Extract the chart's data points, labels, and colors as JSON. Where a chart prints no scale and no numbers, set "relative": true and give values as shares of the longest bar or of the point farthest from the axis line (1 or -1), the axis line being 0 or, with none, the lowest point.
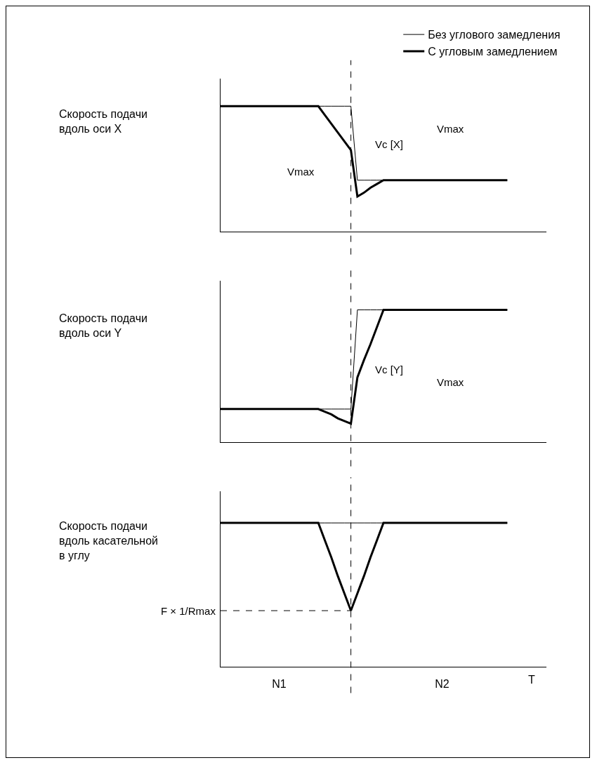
{
  "chart_data": [
    {
      "type": "line",
      "relative": true,
      "ylabel": "Скорость подачи вдоль оси X",
      "legend": "top right",
      "tick_labels": false,
      "categories": [
        null,
        null,
        null,
        null,
        null,
        null,
        null,
        null,
        null,
        null,
        null,
        null,
        null,
        null,
        null,
        null,
        null,
        null,
        null,
        null,
        null,
        null,
        null,
        null,
        null,
        null,
        null,
        null,
        null,
        null,
        null,
        null,
        null,
        null,
        null,
        null,
        null,
        null,
        null,
        null,
        null,
        null,
        null,
        null,
        null,
        null,
        null,
        null,
        null,
        null
      ],
      "series": [
        {
          "name": "Без углового замедления",
          "color": "#000000",
          "values": [
            1,
            1,
            1,
            1,
            1,
            1,
            1,
            1,
            1,
            1,
            1,
            1,
            1,
            1,
            1,
            1,
            1,
            1,
            1,
            1,
            1,
            0.41,
            0.41,
            0.41,
            0.41,
            0.41,
            0.41,
            0.41,
            0.41,
            0.41,
            0.41,
            0.41,
            0.41,
            0.41,
            0.41,
            0.41,
            0.41,
            0.41,
            0.41,
            0.41,
            0.41,
            0.41,
            0.41,
            0.41,
            0.41,
            null,
            null,
            null,
            null,
            null
          ]
        },
        {
          "name": "С угловым замедлением",
          "color": "#000000",
          "values": [
            1,
            1,
            1,
            1,
            1,
            1,
            1,
            1,
            1,
            1,
            1,
            1,
            1,
            1,
            1,
            1,
            0.93,
            0.86,
            0.79,
            0.72,
            0.65,
            0.28,
            0.31,
            0.35,
            0.38,
            0.41,
            0.41,
            0.41,
            0.41,
            0.41,
            0.41,
            0.41,
            0.41,
            0.41,
            0.41,
            0.41,
            0.41,
            0.41,
            0.41,
            0.41,
            0.41,
            0.41,
            0.41,
            0.41,
            0.41,
            null,
            null,
            null,
            null,
            null
          ]
        }
      ],
      "annotations": [
        "Vc [X]",
        "Vmax",
        "Vmax"
      ]
    },
    {
      "type": "line",
      "relative": true,
      "ylabel": "Скорость подачи вдоль оси Y",
      "tick_labels": false,
      "categories": [
        null,
        null,
        null,
        null,
        null,
        null,
        null,
        null,
        null,
        null,
        null,
        null,
        null,
        null,
        null,
        null,
        null,
        null,
        null,
        null,
        null,
        null,
        null,
        null,
        null,
        null,
        null,
        null,
        null,
        null,
        null,
        null,
        null,
        null,
        null,
        null,
        null,
        null,
        null,
        null,
        null,
        null,
        null,
        null,
        null,
        null,
        null,
        null,
        null,
        null
      ],
      "series": [
        {
          "color": "#000000",
          "values": [
            0.25,
            0.25,
            0.25,
            0.25,
            0.25,
            0.25,
            0.25,
            0.25,
            0.25,
            0.25,
            0.25,
            0.25,
            0.25,
            0.25,
            0.25,
            0.25,
            0.25,
            0.25,
            0.25,
            0.25,
            0.25,
            1,
            1,
            1,
            1,
            1,
            1,
            1,
            1,
            1,
            1,
            1,
            1,
            1,
            1,
            1,
            1,
            1,
            1,
            1,
            1,
            1,
            1,
            1,
            1,
            null,
            null,
            null,
            null,
            null
          ]
        },
        {
          "color": "#000000",
          "values": [
            0.25,
            0.25,
            0.25,
            0.25,
            0.25,
            0.25,
            0.25,
            0.25,
            0.25,
            0.25,
            0.25,
            0.25,
            0.25,
            0.25,
            0.25,
            0.25,
            0.23,
            0.21,
            0.18,
            0.16,
            0.14,
            0.49,
            0.62,
            0.74,
            0.87,
            1,
            1,
            1,
            1,
            1,
            1,
            1,
            1,
            1,
            1,
            1,
            1,
            1,
            1,
            1,
            1,
            1,
            1,
            1,
            1,
            null,
            null,
            null,
            null,
            null
          ]
        }
      ],
      "annotations": [
        "Vc [Y]",
        "Vmax"
      ]
    },
    {
      "type": "line",
      "relative": true,
      "ylabel": "Скорость подачи вдоль касательной в углу",
      "xlabel": "T",
      "tick_labels": "x",
      "categories": [
        null,
        null,
        null,
        null,
        null,
        null,
        null,
        null,
        null,
        "N1",
        null,
        null,
        null,
        null,
        null,
        null,
        null,
        null,
        null,
        null,
        null,
        null,
        null,
        null,
        null,
        null,
        null,
        null,
        null,
        null,
        null,
        null,
        null,
        null,
        "N2",
        null,
        null,
        null,
        null,
        null,
        null,
        null,
        null,
        null,
        null,
        null,
        null,
        null,
        null,
        null
      ],
      "series": [
        {
          "color": "#000000",
          "values": [
            1,
            1,
            1,
            1,
            1,
            1,
            1,
            1,
            1,
            1,
            1,
            1,
            1,
            1,
            1,
            1,
            1,
            1,
            1,
            1,
            1,
            1,
            1,
            1,
            1,
            1,
            1,
            1,
            1,
            1,
            1,
            1,
            1,
            1,
            1,
            1,
            1,
            1,
            1,
            1,
            1,
            1,
            1,
            1,
            1,
            null,
            null,
            null,
            null,
            null
          ]
        },
        {
          "color": "#000000",
          "values": [
            1,
            1,
            1,
            1,
            1,
            1,
            1,
            1,
            1,
            1,
            1,
            1,
            1,
            1,
            1,
            1,
            0.88,
            0.76,
            0.63,
            0.51,
            0.39,
            0.51,
            0.63,
            0.76,
            0.88,
            1,
            1,
            1,
            1,
            1,
            1,
            1,
            1,
            1,
            1,
            1,
            1,
            1,
            1,
            1,
            1,
            1,
            1,
            1,
            1,
            null,
            null,
            null,
            null,
            null
          ]
        }
      ],
      "ref_lines": [
        {
          "axis": "y",
          "value": 0.39,
          "label": "F × 1/Rmax",
          "line_style": "dashed"
        }
      ]
    }
  ]
}
